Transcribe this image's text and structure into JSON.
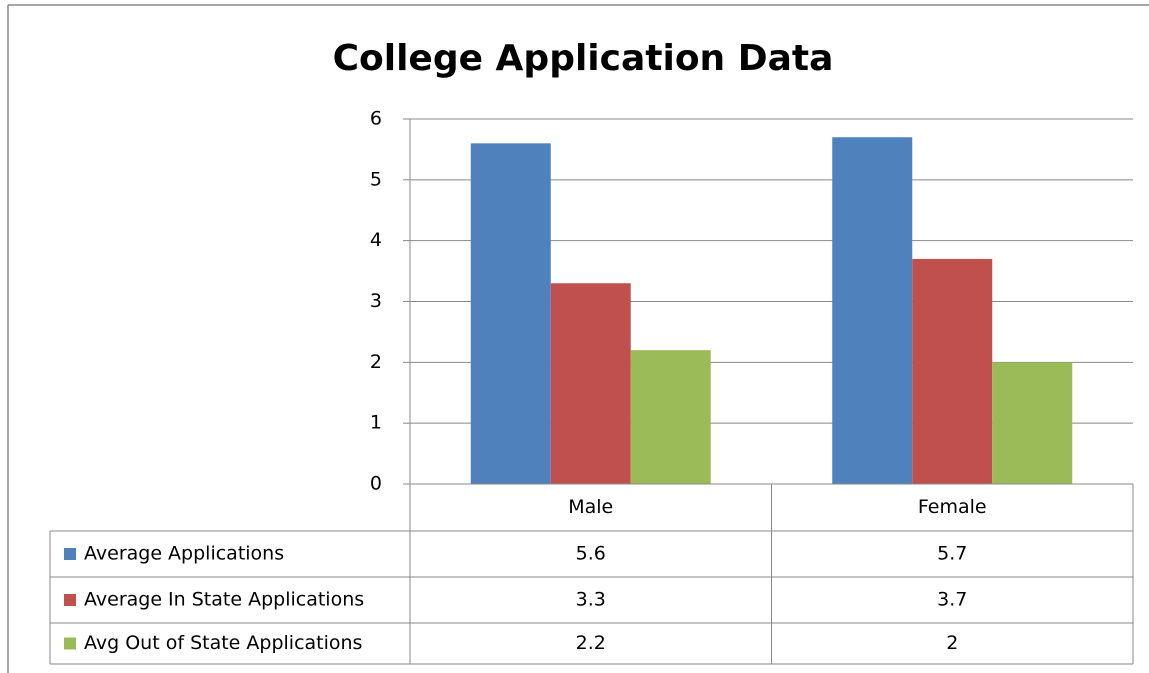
{
  "chart_data": {
    "type": "bar",
    "title": "College Application Data",
    "categories": [
      "Male",
      "Female"
    ],
    "series": [
      {
        "name": "Average Applications",
        "color": "#4f81bd",
        "values": [
          5.6,
          5.7
        ]
      },
      {
        "name": "Average In State Applications",
        "color": "#c0504d",
        "values": [
          3.3,
          3.7
        ]
      },
      {
        "name": "Avg Out of State Applications",
        "color": "#9bbb59",
        "values": [
          2.2,
          2
        ]
      }
    ],
    "ylim": [
      0,
      6
    ],
    "yticks": [
      0,
      1,
      2,
      3,
      4,
      5,
      6
    ],
    "grid": true,
    "data_table": true
  }
}
